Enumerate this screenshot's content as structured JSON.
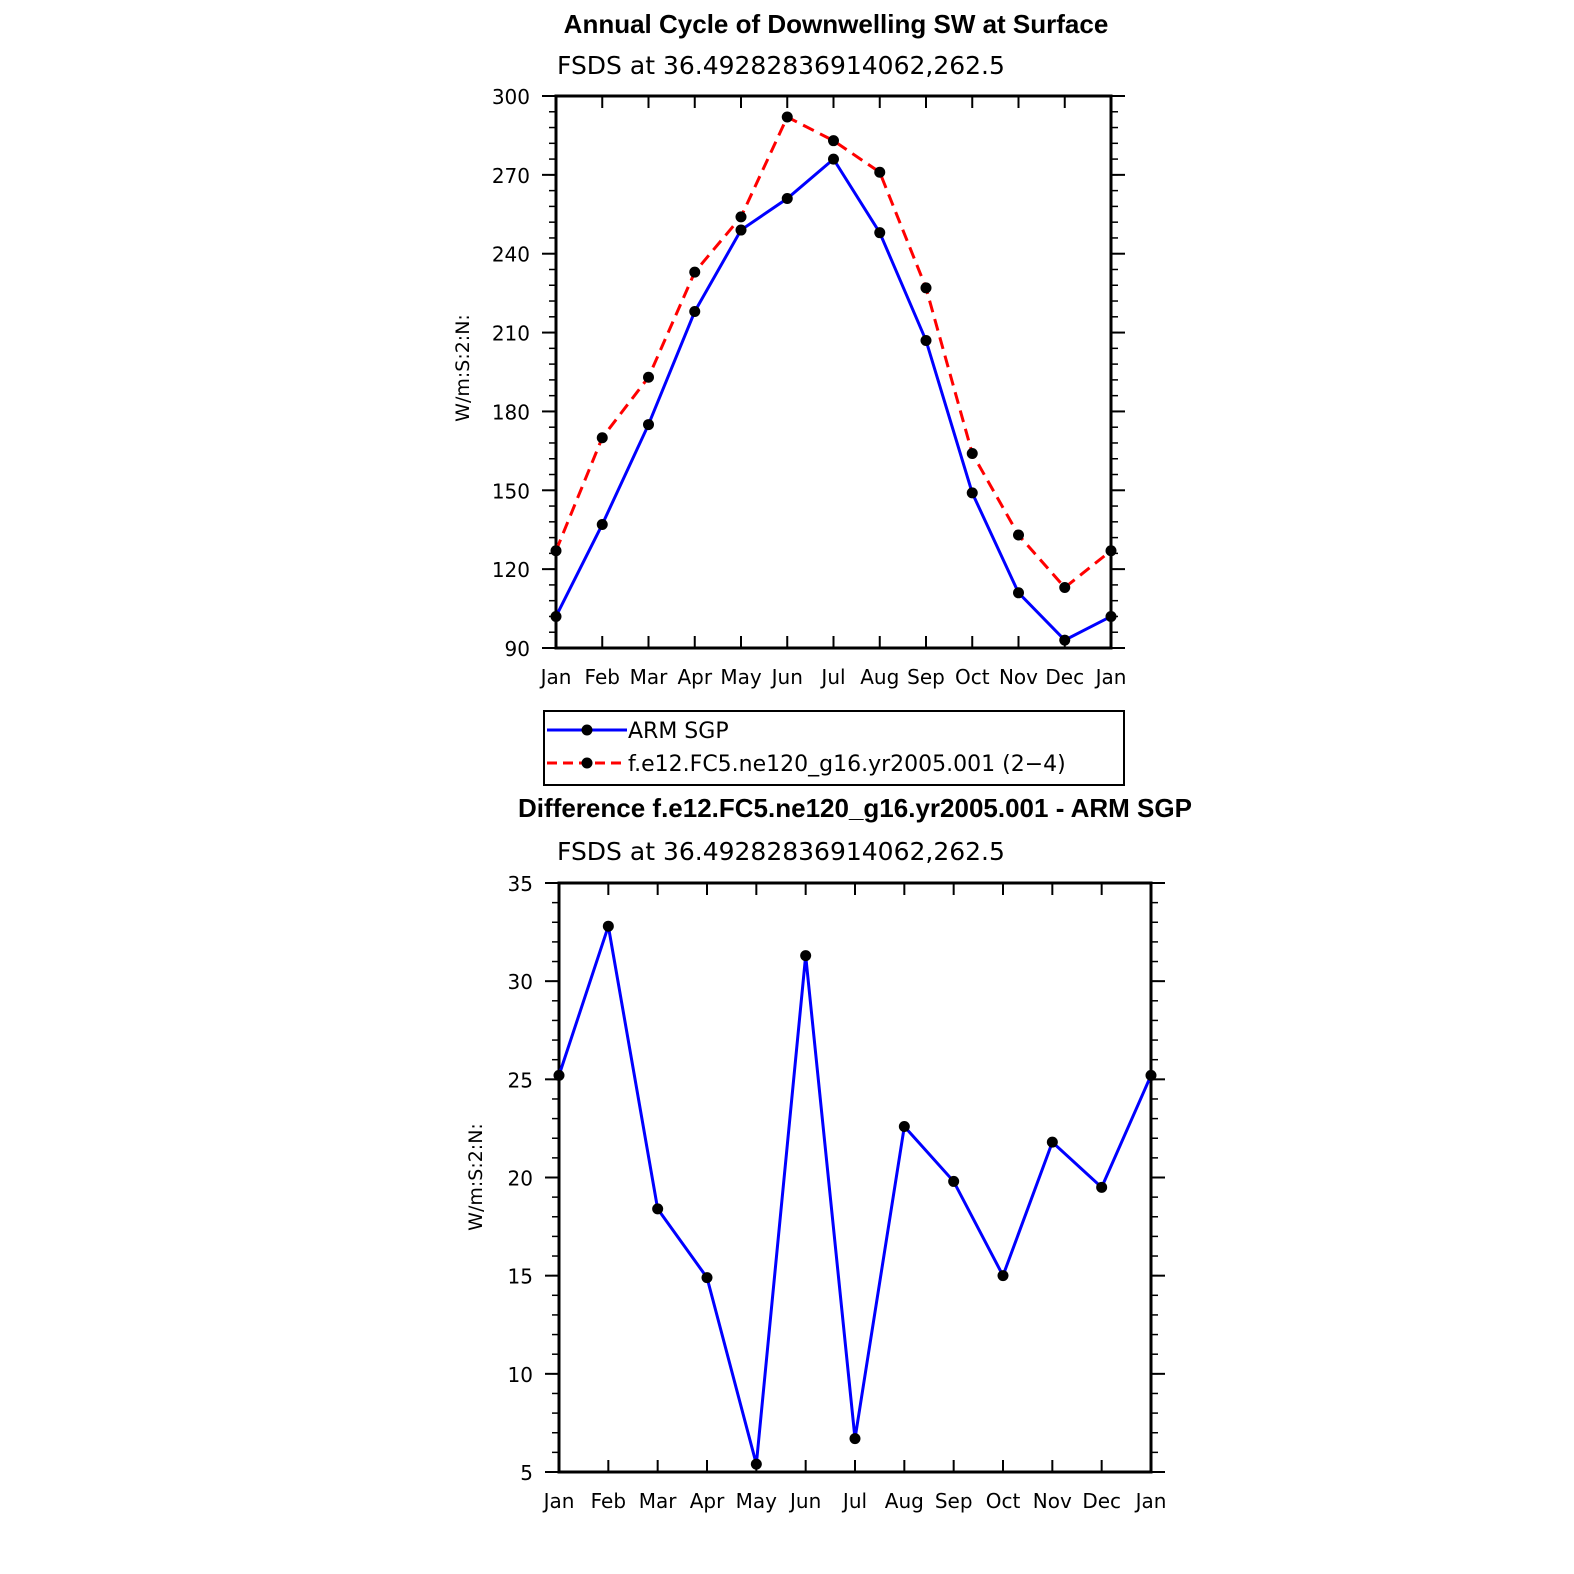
{
  "chart_data": [
    {
      "type": "line",
      "title": "Annual Cycle of Downwelling SW at Surface",
      "subtitle": "FSDS at 36.49282836914062,262.5",
      "ylabel": "W/m:S:2:N:",
      "xlabel": "",
      "categories": [
        "Jan",
        "Feb",
        "Mar",
        "Apr",
        "May",
        "Jun",
        "Jul",
        "Aug",
        "Sep",
        "Oct",
        "Nov",
        "Dec",
        "Jan"
      ],
      "ylim": [
        90,
        300
      ],
      "yticks": [
        90,
        120,
        150,
        180,
        210,
        240,
        270,
        300
      ],
      "series": [
        {
          "name": "ARM SGP",
          "color": "#0000ff",
          "dash": "solid",
          "values": [
            102,
            137,
            175,
            218,
            249,
            261,
            276,
            248,
            207,
            149,
            111,
            93,
            102
          ]
        },
        {
          "name": "f.e12.FC5.ne120_g16.yr2005.001 (2−4)",
          "color": "#ff0000",
          "dash": "dashed",
          "values": [
            127,
            170,
            193,
            233,
            254,
            292,
            283,
            271,
            227,
            164,
            133,
            113,
            127
          ]
        }
      ],
      "legend": "below"
    },
    {
      "type": "line",
      "title": "Difference f.e12.FC5.ne120_g16.yr2005.001 - ARM SGP",
      "subtitle": "FSDS at 36.49282836914062,262.5",
      "ylabel": "W/m:S:2:N:",
      "xlabel": "",
      "categories": [
        "Jan",
        "Feb",
        "Mar",
        "Apr",
        "May",
        "Jun",
        "Jul",
        "Aug",
        "Sep",
        "Oct",
        "Nov",
        "Dec",
        "Jan"
      ],
      "ylim": [
        5,
        35
      ],
      "yticks": [
        5,
        10,
        15,
        20,
        25,
        30,
        35
      ],
      "series": [
        {
          "name": "Difference",
          "color": "#0000ff",
          "dash": "solid",
          "values": [
            25.2,
            32.8,
            18.4,
            14.9,
            5.4,
            31.3,
            6.7,
            22.6,
            19.8,
            15.0,
            21.8,
            19.5,
            25.2
          ]
        }
      ]
    }
  ]
}
